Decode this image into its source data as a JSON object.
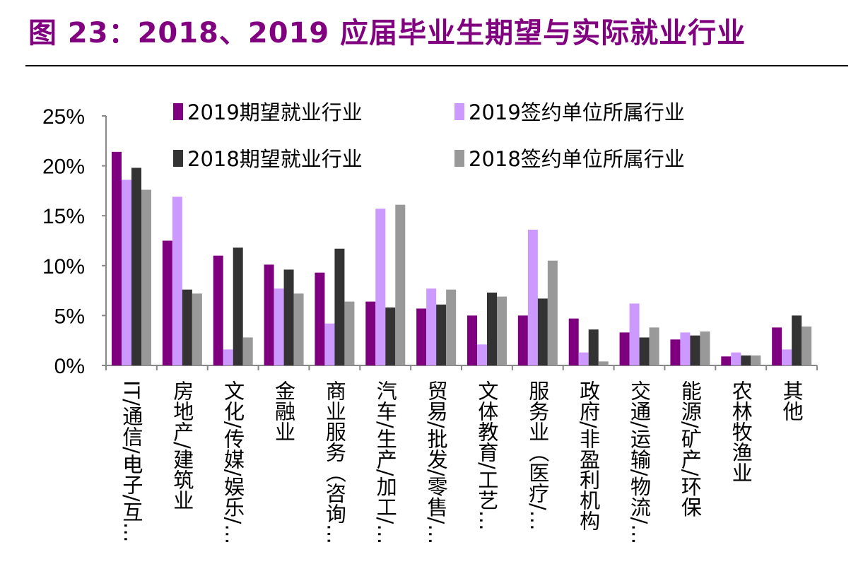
{
  "title": "图 23：2018、2019 应届毕业生期望与实际就业行业",
  "chart_data": {
    "type": "bar",
    "title": "",
    "xlabel": "",
    "ylabel": "",
    "ylim": [
      0,
      25
    ],
    "yticks": [
      "0%",
      "5%",
      "10%",
      "15%",
      "20%",
      "25%"
    ],
    "grid": false,
    "legend_position": "top",
    "categories": [
      "IT/通信/电子/互…",
      "房地产/建筑业",
      "文化/传媒/娱乐/…",
      "金融业",
      "商业服务（咨询…",
      "汽车/生产/加工/…",
      "贸易/批发/零售/…",
      "文体教育/工艺…",
      "服务业（医疗/…",
      "政府/非盈利机构",
      "交通/运输/物流/…",
      "能源/矿产/环保",
      "农林牧渔业",
      "其他"
    ],
    "series": [
      {
        "name": "2019期望就业行业",
        "color": "#7f007f",
        "values": [
          21.4,
          12.5,
          11.0,
          10.1,
          9.3,
          6.4,
          5.7,
          5.0,
          5.0,
          4.7,
          3.3,
          2.6,
          0.9,
          3.8
        ]
      },
      {
        "name": "2019签约单位所属行业",
        "color": "#cc99ff",
        "values": [
          18.6,
          16.9,
          1.6,
          7.7,
          4.2,
          15.7,
          7.7,
          2.1,
          13.6,
          1.3,
          6.2,
          3.3,
          1.3,
          1.6
        ]
      },
      {
        "name": "2018期望就业行业",
        "color": "#333333",
        "values": [
          19.8,
          7.6,
          11.8,
          9.6,
          11.7,
          5.8,
          6.1,
          7.3,
          6.7,
          3.6,
          2.8,
          3.0,
          1.0,
          5.0
        ]
      },
      {
        "name": "2018签约单位所属行业",
        "color": "#999999",
        "values": [
          17.6,
          7.2,
          2.8,
          7.2,
          6.4,
          16.1,
          7.6,
          6.9,
          10.5,
          0.4,
          3.8,
          3.4,
          1.0,
          3.9
        ]
      }
    ]
  }
}
